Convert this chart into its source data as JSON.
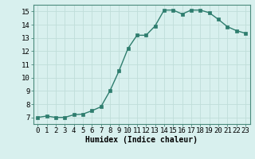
{
  "x": [
    0,
    1,
    2,
    3,
    4,
    5,
    6,
    7,
    8,
    9,
    10,
    11,
    12,
    13,
    14,
    15,
    16,
    17,
    18,
    19,
    20,
    21,
    22,
    23
  ],
  "y": [
    7.0,
    7.1,
    7.0,
    7.0,
    7.2,
    7.25,
    7.5,
    7.8,
    9.0,
    10.5,
    12.2,
    13.2,
    13.2,
    13.9,
    15.1,
    15.1,
    14.8,
    15.1,
    15.1,
    14.9,
    14.4,
    13.85,
    13.55,
    13.35
  ],
  "xlabel": "Humidex (Indice chaleur)",
  "line_color": "#2e7d6e",
  "marker_color": "#2e7d6e",
  "bg_color": "#d8f0ee",
  "grid_color": "#c0ddd9",
  "xlim": [
    -0.5,
    23.5
  ],
  "ylim": [
    6.5,
    15.5
  ],
  "yticks": [
    7,
    8,
    9,
    10,
    11,
    12,
    13,
    14,
    15
  ],
  "xtick_labels": [
    "0",
    "1",
    "2",
    "3",
    "4",
    "5",
    "6",
    "7",
    "8",
    "9",
    "10",
    "11",
    "12",
    "13",
    "14",
    "15",
    "16",
    "17",
    "18",
    "19",
    "20",
    "21",
    "22",
    "23"
  ],
  "xlabel_fontsize": 7,
  "tick_fontsize": 6.5
}
